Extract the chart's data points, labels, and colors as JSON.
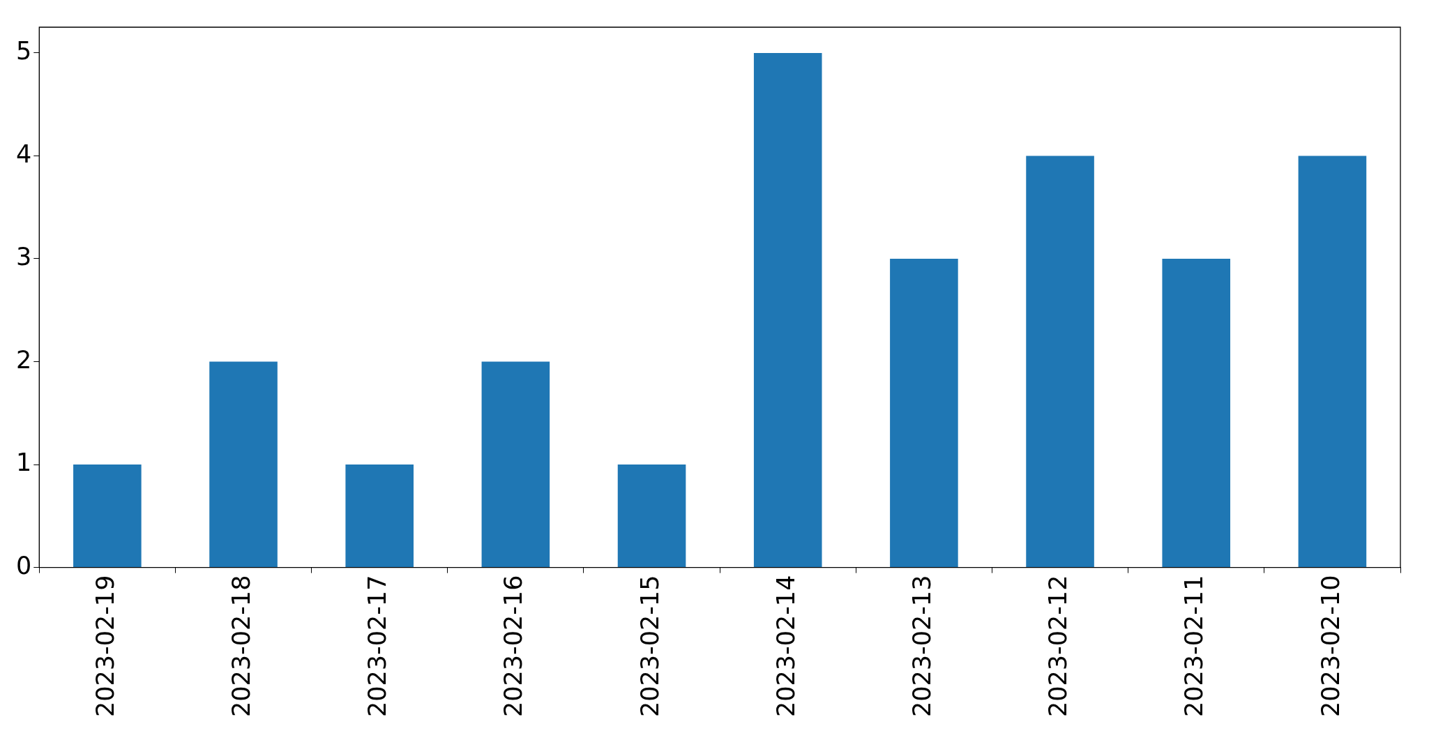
{
  "chart_data": {
    "type": "bar",
    "categories": [
      "2023-02-19",
      "2023-02-18",
      "2023-02-17",
      "2023-02-16",
      "2023-02-15",
      "2023-02-14",
      "2023-02-13",
      "2023-02-12",
      "2023-02-11",
      "2023-02-10"
    ],
    "values": [
      1,
      2,
      1,
      2,
      1,
      5,
      3,
      4,
      3,
      4
    ],
    "color": "#1f77b4",
    "ylim": [
      0,
      5.25
    ],
    "yticks": [
      0,
      1,
      2,
      3,
      4,
      5
    ]
  }
}
